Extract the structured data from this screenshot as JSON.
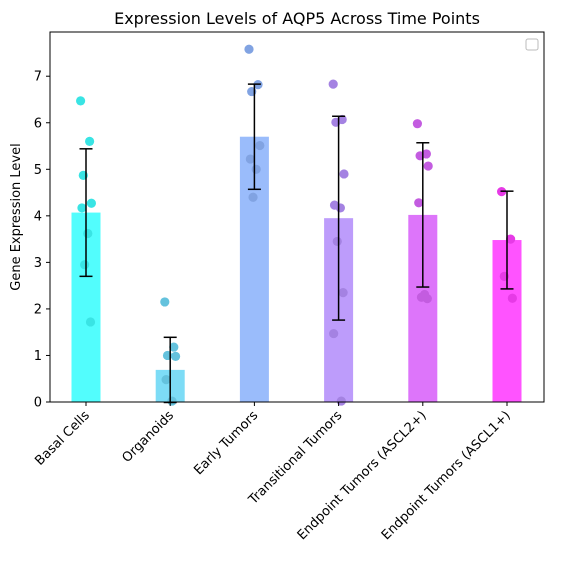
{
  "chart_data": {
    "type": "bar",
    "title": "Expression Levels of AQP5 Across Time Points",
    "xlabel": "",
    "ylabel": "Gene Expression Level",
    "ylim": [
      0,
      7.95
    ],
    "yticks": [
      0,
      1,
      2,
      3,
      4,
      5,
      6,
      7
    ],
    "grid": false,
    "legend": "top-right (empty)",
    "categories": [
      "Basal Cells",
      "Organoids",
      "Early Tumors",
      "Transitional Tumors",
      "Endpoint Tumors (ASCL2+)",
      "Endpoint Tumors (ASCL1+)"
    ],
    "values": [
      4.07,
      0.69,
      5.7,
      3.95,
      4.02,
      3.48
    ],
    "errors": [
      1.37,
      0.7,
      1.13,
      2.19,
      1.55,
      1.05
    ],
    "colors": [
      "#3ffdfd",
      "#6fd8f5",
      "#8fb5fb",
      "#b691fb",
      "#d966f9",
      "#ff40ff"
    ],
    "points": [
      [
        6.47,
        5.6,
        4.87,
        4.27,
        4.17,
        3.62,
        2.95,
        1.72
      ],
      [
        2.15,
        1.18,
        1.0,
        0.98,
        0.48,
        0.02
      ],
      [
        7.58,
        6.82,
        6.67,
        5.51,
        5.22,
        5.0,
        4.4
      ],
      [
        6.83,
        6.07,
        6.01,
        4.9,
        4.23,
        4.17,
        3.45,
        2.35,
        1.47,
        0.02
      ],
      [
        5.98,
        5.33,
        5.29,
        5.07,
        4.28,
        2.31,
        2.25,
        2.22
      ],
      [
        4.52,
        3.5,
        2.7,
        2.23
      ]
    ]
  }
}
